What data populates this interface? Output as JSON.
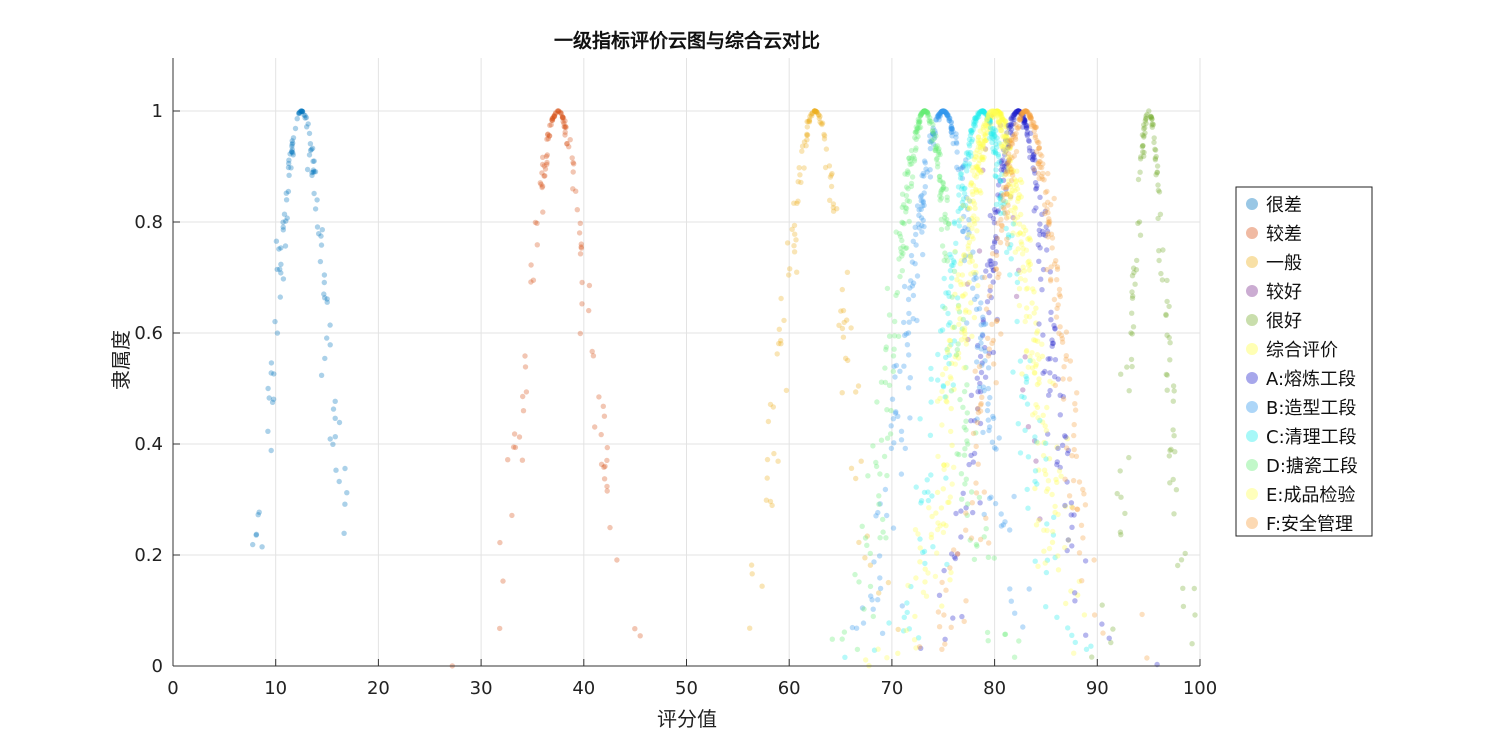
{
  "chart_data": {
    "type": "scatter",
    "title": "一级指标评价云图与综合云对比",
    "xlabel": "评分值",
    "ylabel": "隶属度",
    "xlim": [
      0,
      100
    ],
    "ylim": [
      0,
      1.1
    ],
    "xticks": [
      "0",
      "10",
      "20",
      "30",
      "40",
      "50",
      "60",
      "70",
      "80",
      "90",
      "100"
    ],
    "yticks": [
      "0",
      "0.2",
      "0.4",
      "0.6",
      "0.8",
      "1"
    ],
    "grid": true,
    "legend_position": "right",
    "series": [
      {
        "name": "很差",
        "color": "#0072BD",
        "ex": 12.5,
        "en": 2.5,
        "he": 0.3,
        "n": 120
      },
      {
        "name": "较差",
        "color": "#D95319",
        "ex": 37.5,
        "en": 3.0,
        "he": 0.35,
        "n": 120
      },
      {
        "name": "一般",
        "color": "#EDB120",
        "ex": 62.5,
        "en": 3.0,
        "he": 0.35,
        "n": 120
      },
      {
        "name": "较好",
        "color": "#7E2F8E",
        "ex": 80.0,
        "en": 2.5,
        "he": 0.3,
        "n": 20
      },
      {
        "name": "很好",
        "color": "#77AC30",
        "ex": 95.0,
        "en": 1.7,
        "he": 0.25,
        "n": 120
      },
      {
        "name": "综合评价",
        "color": "#FFFF44",
        "ex": 80.2,
        "en": 3.5,
        "he": 0.55,
        "n": 260
      },
      {
        "name": "A:熔炼工段",
        "color": "#2222CC",
        "ex": 82.3,
        "en": 3.2,
        "he": 0.45,
        "n": 260
      },
      {
        "name": "B:造型工段",
        "color": "#3399EE",
        "ex": 75.0,
        "en": 3.5,
        "he": 0.5,
        "n": 260
      },
      {
        "name": "C:清理工段",
        "color": "#22EEEE",
        "ex": 78.8,
        "en": 3.5,
        "he": 0.55,
        "n": 260
      },
      {
        "name": "D:搪瓷工段",
        "color": "#66EE77",
        "ex": 73.2,
        "en": 3.0,
        "he": 0.45,
        "n": 260
      },
      {
        "name": "E:成品检验",
        "color": "#FFFF55",
        "ex": 79.8,
        "en": 3.5,
        "he": 0.55,
        "n": 260
      },
      {
        "name": "F:安全管理",
        "color": "#F7A040",
        "ex": 83.0,
        "en": 3.4,
        "he": 0.5,
        "n": 260
      }
    ]
  }
}
